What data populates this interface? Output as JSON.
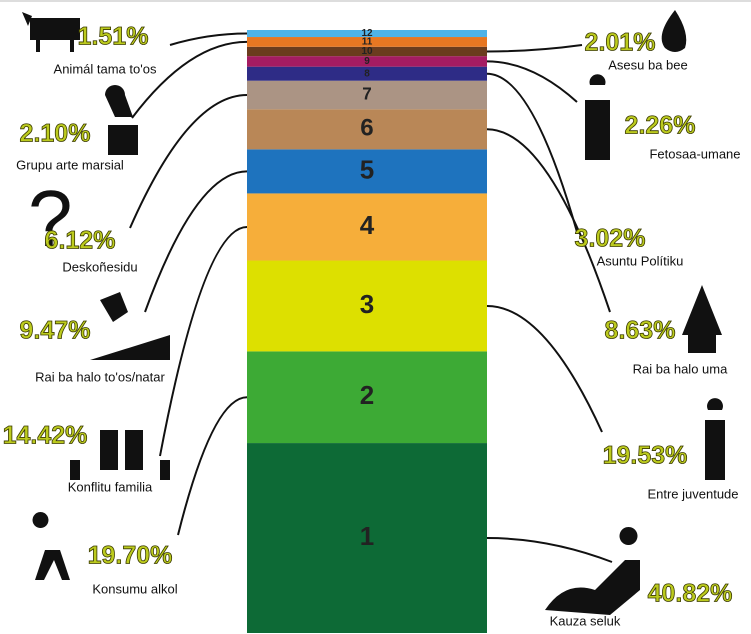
{
  "chart_data": {
    "type": "stacked-bar",
    "categories": [
      "1",
      "2",
      "3",
      "4",
      "5",
      "6",
      "7",
      "8",
      "9",
      "10",
      "11",
      "12"
    ],
    "labels": [
      "Kauza seluk",
      "Konsumu alkol",
      "Entre juventude",
      "Konflitu familia",
      "Rai ba halo to'os/natar",
      "Rai ba halo uma",
      "Deskoñesidu",
      "Asuntu Polítiku",
      "Fetosaa-umane",
      "Asesu ba bee",
      "Grupu arte marsial",
      "Animál tama to'os"
    ],
    "values": [
      40.82,
      19.7,
      19.53,
      14.42,
      9.47,
      8.63,
      6.12,
      3.02,
      2.26,
      2.01,
      2.1,
      1.51
    ],
    "value_labels": [
      "40.82%",
      "19.70%",
      "19.53%",
      "14.42%",
      "9.47%",
      "8.63%",
      "6.12%",
      "3.02%",
      "2.26%",
      "2.01%",
      "2.10%",
      "1.51%"
    ],
    "colors": [
      "#0d6a36",
      "#3daa35",
      "#dde000",
      "#f6ae3a",
      "#1e73be",
      "#b98757",
      "#ab9484",
      "#2e2c86",
      "#a51c62",
      "#6b3c1e",
      "#e87722",
      "#4fb3e8"
    ]
  }
}
